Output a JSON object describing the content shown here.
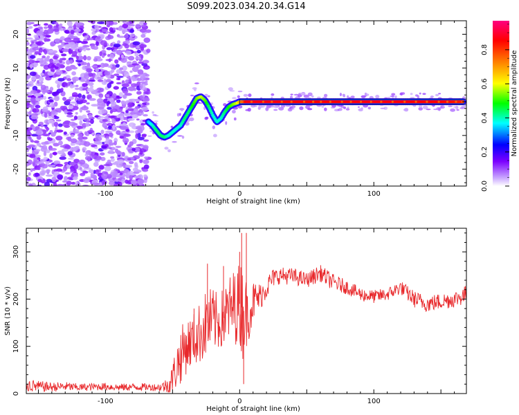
{
  "figure": {
    "title": "S099.2023.034.20.34.G14"
  },
  "chart_data": [
    {
      "type": "heatmap",
      "title": "S099.2023.034.20.34.G14",
      "xlabel": "Height of straight line (km)",
      "ylabel": "Frequency (Hz)",
      "xlim": [
        -159,
        169
      ],
      "ylim": [
        -25,
        24
      ],
      "x_ticks": [
        -100,
        0,
        100
      ],
      "y_ticks": [
        20,
        10,
        0,
        -10,
        -20
      ],
      "y_tick_labels": [
        "20",
        "10",
        "0",
        "-10",
        "-20"
      ],
      "grid": false,
      "colorbar": {
        "label": "Normalized spectral amplitude",
        "range": [
          0,
          0.97
        ],
        "ticks": [
          0.0,
          0.2,
          0.4,
          0.6,
          0.8
        ],
        "tick_labels": [
          "0.0",
          "0.2",
          "0.4",
          "0.6",
          "0.8"
        ],
        "colormap": [
          "#ffffff",
          "#7b00ff",
          "#0000ff",
          "#00ffff",
          "#00ff00",
          "#ffff00",
          "#ff0000",
          "#ff0080"
        ]
      },
      "noise_region_x": [
        -159,
        -68
      ],
      "signal_trace": {
        "x": [
          -68,
          -65,
          -62,
          -59,
          -56,
          -53,
          -50,
          -47,
          -44,
          -41,
          -38,
          -35,
          -32,
          -29,
          -26,
          -23,
          -20,
          -17,
          -14,
          -11,
          -8,
          -5,
          -2,
          0,
          5,
          20,
          50,
          100,
          150,
          167
        ],
        "y": [
          -6,
          -7,
          -8.5,
          -10,
          -10.5,
          -10,
          -9,
          -8,
          -7,
          -5,
          -3,
          -1,
          1,
          1.5,
          0.5,
          -1.5,
          -4,
          -6,
          -5,
          -3,
          -1.5,
          -0.8,
          -0.4,
          0,
          0,
          0,
          0,
          0,
          0,
          0
        ],
        "amplitude": [
          0.35,
          0.4,
          0.45,
          0.45,
          0.45,
          0.4,
          0.4,
          0.4,
          0.4,
          0.45,
          0.45,
          0.5,
          0.55,
          0.6,
          0.55,
          0.45,
          0.4,
          0.4,
          0.4,
          0.45,
          0.5,
          0.55,
          0.6,
          0.7,
          0.9,
          0.9,
          0.88,
          0.9,
          0.88,
          0.85
        ]
      }
    },
    {
      "type": "line",
      "xlabel": "Height of straight line (km)",
      "ylabel": "SNR (10 * v/v)",
      "xlim": [
        -159,
        169
      ],
      "ylim": [
        0,
        350
      ],
      "x_ticks": [
        -100,
        0,
        100
      ],
      "y_ticks": [
        0,
        100,
        200,
        300
      ],
      "grid": false,
      "series": [
        {
          "color": "#e8282b",
          "x": [
            -159,
            -150,
            -140,
            -130,
            -120,
            -110,
            -100,
            -90,
            -80,
            -70,
            -60,
            -52,
            -48,
            -44,
            -40,
            -36,
            -32,
            -28,
            -24,
            -20,
            -16,
            -12,
            -8,
            -4,
            0,
            2,
            4,
            6,
            10,
            15,
            20,
            25,
            30,
            40,
            50,
            60,
            70,
            80,
            90,
            100,
            110,
            120,
            130,
            140,
            150,
            160,
            169
          ],
          "y": [
            18,
            15,
            14,
            15,
            13,
            14,
            15,
            13,
            14,
            14,
            13,
            18,
            50,
            80,
            100,
            110,
            120,
            135,
            150,
            155,
            150,
            160,
            175,
            185,
            190,
            180,
            170,
            165,
            195,
            205,
            225,
            245,
            250,
            248,
            240,
            255,
            235,
            225,
            210,
            205,
            210,
            225,
            200,
            190,
            195,
            200,
            210
          ],
          "jitter": [
            15,
            12,
            10,
            10,
            8,
            8,
            8,
            8,
            8,
            8,
            8,
            20,
            45,
            60,
            60,
            55,
            60,
            70,
            75,
            70,
            60,
            65,
            75,
            80,
            90,
            110,
            90,
            60,
            45,
            30,
            25,
            20,
            18,
            18,
            16,
            18,
            18,
            15,
            15,
            14,
            14,
            15,
            18,
            18,
            18,
            18,
            20
          ],
          "spikes": [
            [
              -34,
              180
            ],
            [
              -24,
              275
            ],
            [
              -12,
              270
            ],
            [
              0,
              300
            ],
            [
              1.5,
              340
            ],
            [
              3,
              20
            ],
            [
              5,
              340
            ]
          ]
        }
      ]
    }
  ]
}
